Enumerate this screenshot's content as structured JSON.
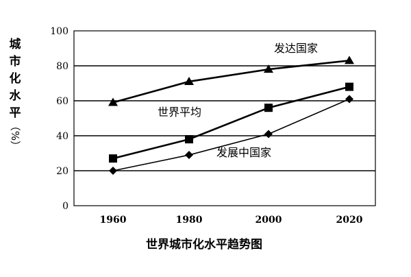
{
  "chart_data": {
    "type": "line",
    "title": "世界城市化水平趋势图",
    "ylabel_chars": [
      "城",
      "市",
      "化",
      "水",
      "平"
    ],
    "yunit": "（%）",
    "ylim": [
      0,
      100
    ],
    "yticks": [
      "0",
      "20",
      "40",
      "60",
      "80",
      "100"
    ],
    "ytick_values": [
      0,
      20,
      40,
      60,
      80,
      100
    ],
    "categories": [
      "1960",
      "1980",
      "2000",
      "2020"
    ],
    "grid": true,
    "series": [
      {
        "name": "发达国家",
        "marker": "triangle",
        "values": [
          59,
          71,
          78,
          83
        ]
      },
      {
        "name": "世界平均",
        "marker": "square",
        "values": [
          27,
          38,
          56,
          68
        ]
      },
      {
        "name": "发展中国家",
        "marker": "diamond",
        "values": [
          20,
          29,
          41,
          61
        ]
      }
    ]
  }
}
